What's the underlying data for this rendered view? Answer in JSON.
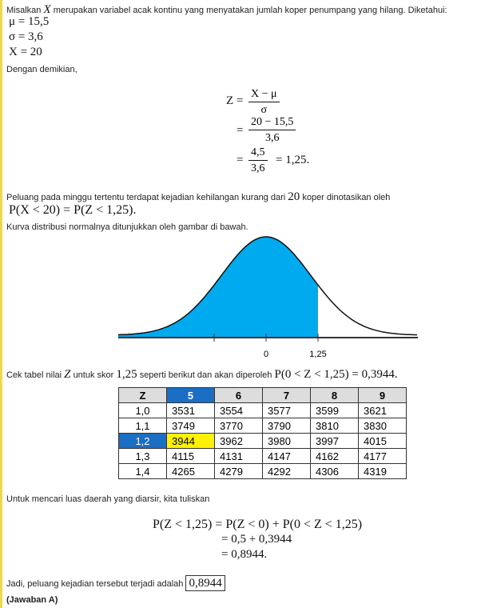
{
  "intro": {
    "before": "Misalkan",
    "var": "X",
    "after": "merupakan variabel acak kontinu yang menyatakan jumlah koper penumpang yang hilang. Diketahui:"
  },
  "given": [
    "μ = 15,5",
    "σ = 3,6",
    "X = 20"
  ],
  "then": "Dengan demikian,",
  "z_calc": {
    "lhs": "Z =",
    "eq": "=",
    "step1": {
      "num": "X − μ",
      "den": "σ"
    },
    "step2": {
      "num": "20 − 15,5",
      "den": "3,6"
    },
    "step3": {
      "num": "4,5",
      "den": "3,6",
      "result": "= 1,25."
    }
  },
  "prob_text": {
    "before": "Peluang pada minggu tertentu terdapat kejadian kehilangan kurang dari",
    "num": "20",
    "after": "koper dinotasikan oleh"
  },
  "prob_expr": "P(X < 20) = P(Z < 1,25).",
  "curve_text": "Kurva distribusi normalnya ditunjukkan oleh gambar di bawah.",
  "curve": {
    "labels": [
      "0",
      "1,25"
    ]
  },
  "table_text": {
    "a": "Cek tabel nilai",
    "b": "Z",
    "c": "untuk skor",
    "d": "1,25",
    "e": "seperti berikut dan akan diperoleh",
    "f": "P(0 < Z < 1,25) = 0,3944."
  },
  "table": {
    "header": [
      "Z",
      "5",
      "6",
      "7",
      "8",
      "9"
    ],
    "rows": [
      [
        "1,0",
        "3531",
        "3554",
        "3577",
        "3599",
        "3621"
      ],
      [
        "1,1",
        "3749",
        "3770",
        "3790",
        "3810",
        "3830"
      ],
      [
        "1,2",
        "3944",
        "3962",
        "3980",
        "3997",
        "4015"
      ],
      [
        "1,3",
        "4115",
        "4131",
        "4147",
        "4162",
        "4177"
      ],
      [
        "1,4",
        "4265",
        "4279",
        "4292",
        "4306",
        "4319"
      ]
    ]
  },
  "area_text": "Untuk mencari luas daerah yang diarsir, kita tuliskan",
  "area_calc": [
    "P(Z < 1,25) = P(Z < 0) + P(0 < Z < 1,25)",
    "= 0,5 + 0,3944",
    "= 0,8944."
  ],
  "conclusion": {
    "text": "Jadi, peluang kejadian tersebut terjadi adalah",
    "answer": "0,8944"
  },
  "answer_choice": "(Jawaban A)"
}
